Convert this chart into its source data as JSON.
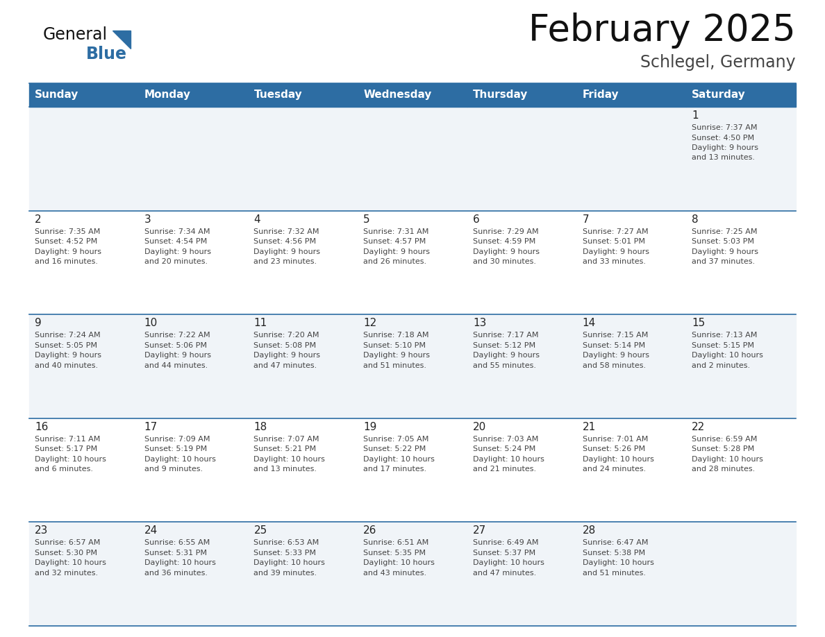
{
  "title": "February 2025",
  "subtitle": "Schlegel, Germany",
  "header_color": "#2d6da3",
  "header_text_color": "#ffffff",
  "days_of_week": [
    "Sunday",
    "Monday",
    "Tuesday",
    "Wednesday",
    "Thursday",
    "Friday",
    "Saturday"
  ],
  "odd_row_bg": "#f0f4f8",
  "even_row_bg": "#ffffff",
  "cell_text_color": "#444444",
  "day_num_color": "#222222",
  "title_color": "#111111",
  "subtitle_color": "#444444",
  "logo_general_color": "#111111",
  "logo_blue_color": "#2d6da3",
  "line_color": "#2d6da3",
  "calendar_data": [
    {
      "day": 1,
      "row": 0,
      "col": 6,
      "sunrise": "7:37 AM",
      "sunset": "4:50 PM",
      "daylight": "9 hours and 13 minutes."
    },
    {
      "day": 2,
      "row": 1,
      "col": 0,
      "sunrise": "7:35 AM",
      "sunset": "4:52 PM",
      "daylight": "9 hours and 16 minutes."
    },
    {
      "day": 3,
      "row": 1,
      "col": 1,
      "sunrise": "7:34 AM",
      "sunset": "4:54 PM",
      "daylight": "9 hours and 20 minutes."
    },
    {
      "day": 4,
      "row": 1,
      "col": 2,
      "sunrise": "7:32 AM",
      "sunset": "4:56 PM",
      "daylight": "9 hours and 23 minutes."
    },
    {
      "day": 5,
      "row": 1,
      "col": 3,
      "sunrise": "7:31 AM",
      "sunset": "4:57 PM",
      "daylight": "9 hours and 26 minutes."
    },
    {
      "day": 6,
      "row": 1,
      "col": 4,
      "sunrise": "7:29 AM",
      "sunset": "4:59 PM",
      "daylight": "9 hours and 30 minutes."
    },
    {
      "day": 7,
      "row": 1,
      "col": 5,
      "sunrise": "7:27 AM",
      "sunset": "5:01 PM",
      "daylight": "9 hours and 33 minutes."
    },
    {
      "day": 8,
      "row": 1,
      "col": 6,
      "sunrise": "7:25 AM",
      "sunset": "5:03 PM",
      "daylight": "9 hours and 37 minutes."
    },
    {
      "day": 9,
      "row": 2,
      "col": 0,
      "sunrise": "7:24 AM",
      "sunset": "5:05 PM",
      "daylight": "9 hours and 40 minutes."
    },
    {
      "day": 10,
      "row": 2,
      "col": 1,
      "sunrise": "7:22 AM",
      "sunset": "5:06 PM",
      "daylight": "9 hours and 44 minutes."
    },
    {
      "day": 11,
      "row": 2,
      "col": 2,
      "sunrise": "7:20 AM",
      "sunset": "5:08 PM",
      "daylight": "9 hours and 47 minutes."
    },
    {
      "day": 12,
      "row": 2,
      "col": 3,
      "sunrise": "7:18 AM",
      "sunset": "5:10 PM",
      "daylight": "9 hours and 51 minutes."
    },
    {
      "day": 13,
      "row": 2,
      "col": 4,
      "sunrise": "7:17 AM",
      "sunset": "5:12 PM",
      "daylight": "9 hours and 55 minutes."
    },
    {
      "day": 14,
      "row": 2,
      "col": 5,
      "sunrise": "7:15 AM",
      "sunset": "5:14 PM",
      "daylight": "9 hours and 58 minutes."
    },
    {
      "day": 15,
      "row": 2,
      "col": 6,
      "sunrise": "7:13 AM",
      "sunset": "5:15 PM",
      "daylight": "10 hours and 2 minutes."
    },
    {
      "day": 16,
      "row": 3,
      "col": 0,
      "sunrise": "7:11 AM",
      "sunset": "5:17 PM",
      "daylight": "10 hours and 6 minutes."
    },
    {
      "day": 17,
      "row": 3,
      "col": 1,
      "sunrise": "7:09 AM",
      "sunset": "5:19 PM",
      "daylight": "10 hours and 9 minutes."
    },
    {
      "day": 18,
      "row": 3,
      "col": 2,
      "sunrise": "7:07 AM",
      "sunset": "5:21 PM",
      "daylight": "10 hours and 13 minutes."
    },
    {
      "day": 19,
      "row": 3,
      "col": 3,
      "sunrise": "7:05 AM",
      "sunset": "5:22 PM",
      "daylight": "10 hours and 17 minutes."
    },
    {
      "day": 20,
      "row": 3,
      "col": 4,
      "sunrise": "7:03 AM",
      "sunset": "5:24 PM",
      "daylight": "10 hours and 21 minutes."
    },
    {
      "day": 21,
      "row": 3,
      "col": 5,
      "sunrise": "7:01 AM",
      "sunset": "5:26 PM",
      "daylight": "10 hours and 24 minutes."
    },
    {
      "day": 22,
      "row": 3,
      "col": 6,
      "sunrise": "6:59 AM",
      "sunset": "5:28 PM",
      "daylight": "10 hours and 28 minutes."
    },
    {
      "day": 23,
      "row": 4,
      "col": 0,
      "sunrise": "6:57 AM",
      "sunset": "5:30 PM",
      "daylight": "10 hours and 32 minutes."
    },
    {
      "day": 24,
      "row": 4,
      "col": 1,
      "sunrise": "6:55 AM",
      "sunset": "5:31 PM",
      "daylight": "10 hours and 36 minutes."
    },
    {
      "day": 25,
      "row": 4,
      "col": 2,
      "sunrise": "6:53 AM",
      "sunset": "5:33 PM",
      "daylight": "10 hours and 39 minutes."
    },
    {
      "day": 26,
      "row": 4,
      "col": 3,
      "sunrise": "6:51 AM",
      "sunset": "5:35 PM",
      "daylight": "10 hours and 43 minutes."
    },
    {
      "day": 27,
      "row": 4,
      "col": 4,
      "sunrise": "6:49 AM",
      "sunset": "5:37 PM",
      "daylight": "10 hours and 47 minutes."
    },
    {
      "day": 28,
      "row": 4,
      "col": 5,
      "sunrise": "6:47 AM",
      "sunset": "5:38 PM",
      "daylight": "10 hours and 51 minutes."
    }
  ]
}
